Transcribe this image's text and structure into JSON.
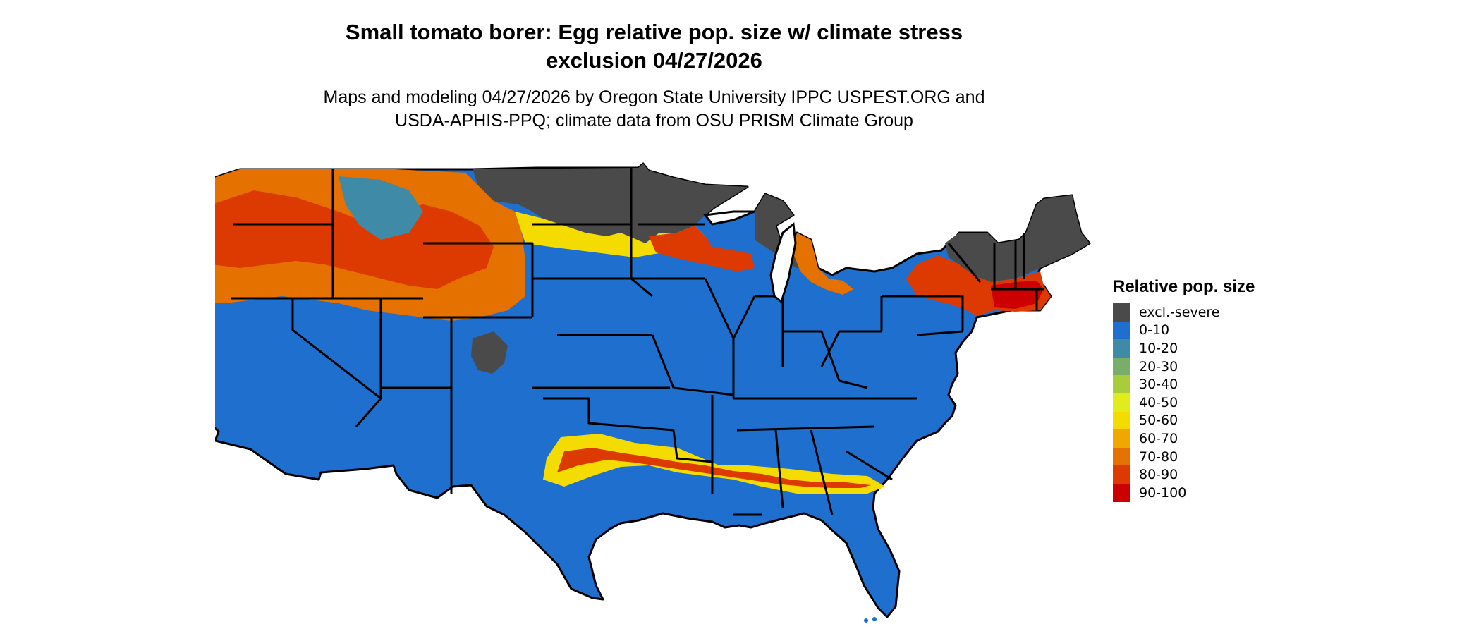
{
  "title_line1": "Small tomato borer: Egg relative pop. size w/ climate stress",
  "title_line2": "exclusion 04/27/2026",
  "subtitle_line1": "Maps and modeling 04/27/2026 by Oregon State University IPPC USPEST.ORG and",
  "subtitle_line2": "USDA-APHIS-PPQ; climate data from OSU PRISM Climate Group",
  "legend": {
    "title": "Relative pop. size",
    "items": [
      {
        "label": "excl.-severe",
        "color": "#4a4a4a"
      },
      {
        "label": "0-10",
        "color": "#1f6fcf"
      },
      {
        "label": "10-20",
        "color": "#3f8aa6"
      },
      {
        "label": "20-30",
        "color": "#79ad6a"
      },
      {
        "label": "30-40",
        "color": "#a8cc3a"
      },
      {
        "label": "40-50",
        "color": "#e2ec1a"
      },
      {
        "label": "50-60",
        "color": "#f5dc00"
      },
      {
        "label": "60-70",
        "color": "#f0a800"
      },
      {
        "label": "70-80",
        "color": "#e57200"
      },
      {
        "label": "80-90",
        "color": "#dc3a00"
      },
      {
        "label": "90-100",
        "color": "#cc0000"
      }
    ]
  }
}
